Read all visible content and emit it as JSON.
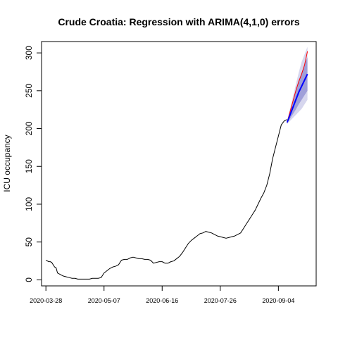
{
  "chart_data": {
    "type": "line",
    "title": "Crude Croatia: Regression with ARIMA(4,1,0) errors",
    "xlabel": "",
    "ylabel": "ICU occupancy",
    "x_ticks": [
      "2020-03-28",
      "2020-05-07",
      "2020-06-16",
      "2020-07-26",
      "2020-09-04"
    ],
    "x_tick_days": [
      0,
      40,
      80,
      120,
      160
    ],
    "xlim": [
      -3,
      186
    ],
    "y_ticks": [
      0,
      50,
      100,
      150,
      200,
      250,
      300
    ],
    "ylim": [
      -8,
      315
    ],
    "grid": false,
    "legend": "none",
    "colors": {
      "observed": "#000000",
      "forecast": "#0000ff",
      "actual_test": "#ff0000",
      "interval_80": "#9f9fd9",
      "interval_95": "#d6d6ee"
    },
    "series": [
      {
        "role": "observed",
        "x": [
          0,
          2,
          3,
          4,
          6,
          7,
          8,
          10,
          12,
          14,
          16,
          18,
          20,
          22,
          24,
          26,
          28,
          30,
          32,
          34,
          36,
          38,
          40,
          42,
          44,
          46,
          48,
          50,
          52,
          54,
          56,
          58,
          60,
          62,
          64,
          66,
          68,
          70,
          72,
          74,
          76,
          78,
          80,
          82,
          84,
          86,
          88,
          90,
          92,
          94,
          96,
          98,
          100,
          102,
          104,
          106,
          108,
          110,
          112,
          114,
          116,
          118,
          120,
          122,
          124,
          126,
          128,
          130,
          132,
          134,
          136,
          138,
          140,
          142,
          144,
          146,
          148,
          150,
          152,
          154,
          156,
          158,
          160,
          162,
          164,
          166
        ],
        "y": [
          26,
          24,
          24,
          23,
          17,
          16,
          9,
          7,
          5,
          4,
          3,
          2,
          2,
          1,
          1,
          1,
          1,
          1,
          2,
          2,
          2,
          3,
          9,
          12,
          15,
          17,
          18,
          20,
          26,
          27,
          27,
          29,
          30,
          29,
          28,
          28,
          27,
          27,
          26,
          22,
          23,
          24,
          24,
          22,
          22,
          24,
          25,
          28,
          31,
          36,
          42,
          48,
          52,
          55,
          58,
          61,
          62,
          64,
          63,
          62,
          60,
          58,
          57,
          56,
          55,
          56,
          57,
          58,
          60,
          62,
          68,
          74,
          80,
          86,
          92,
          100,
          108,
          115,
          125,
          140,
          160,
          175,
          190,
          205,
          210,
          212
        ]
      },
      {
        "role": "forecast",
        "x": [
          166,
          168,
          170,
          172,
          174,
          176,
          178,
          180
        ],
        "y": [
          208,
          218,
          228,
          238,
          248,
          256,
          264,
          272
        ]
      },
      {
        "role": "actual_test",
        "x": [
          166,
          168,
          170,
          172,
          174,
          176,
          178,
          180
        ],
        "y": [
          208,
          222,
          236,
          250,
          262,
          272,
          284,
          302
        ]
      }
    ],
    "intervals": [
      {
        "level": "95%",
        "x": [
          166,
          168,
          170,
          172,
          174,
          176,
          178,
          180
        ],
        "lower": [
          206,
          210,
          214,
          218,
          222,
          226,
          232,
          238
        ],
        "upper": [
          210,
          226,
          242,
          258,
          274,
          288,
          298,
          308
        ]
      },
      {
        "level": "80%",
        "x": [
          166,
          168,
          170,
          172,
          174,
          176,
          178,
          180
        ],
        "lower": [
          207,
          213,
          219,
          225,
          232,
          238,
          244,
          250
        ],
        "upper": [
          209,
          223,
          237,
          251,
          264,
          274,
          284,
          294
        ]
      }
    ]
  }
}
